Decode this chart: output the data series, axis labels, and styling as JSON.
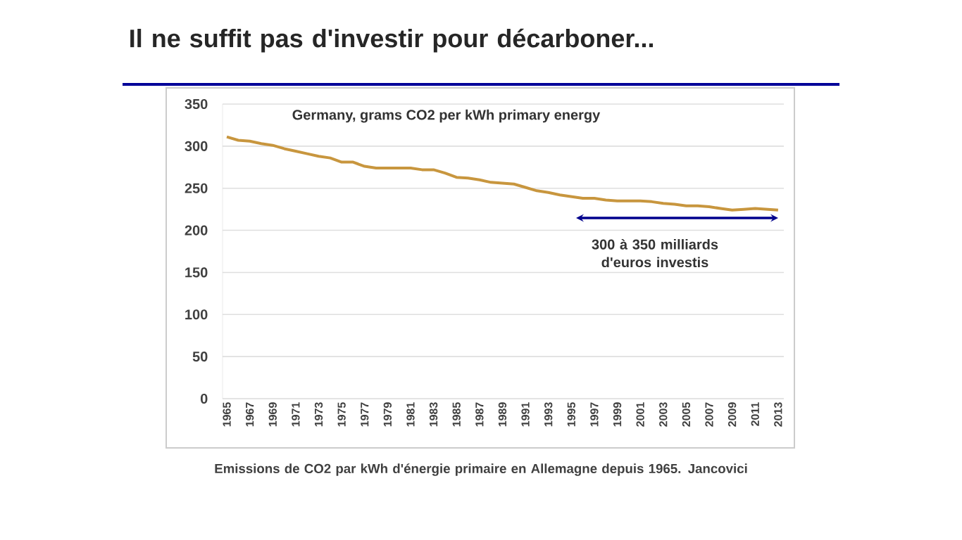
{
  "chart_data": {
    "type": "line",
    "title": "Il ne suffit pas d'investir pour décarboner...",
    "subtitle": "Germany, grams CO2 per kWh primary energy",
    "categories": [
      "1965",
      null,
      "1967",
      null,
      "1969",
      null,
      "1971",
      null,
      "1973",
      null,
      "1975",
      null,
      "1977",
      null,
      "1979",
      null,
      "1981",
      null,
      "1983",
      null,
      "1985",
      null,
      "1987",
      null,
      "1989",
      null,
      "1991",
      null,
      "1993",
      null,
      "1995",
      null,
      "1997",
      null,
      "1999",
      null,
      "2001",
      null,
      "2003",
      null,
      "2005",
      null,
      "2007",
      null,
      "2009",
      null,
      "2011",
      null,
      "2013"
    ],
    "values": [
      311,
      307,
      306,
      303,
      301,
      297,
      294,
      291,
      288,
      286,
      281,
      281,
      276,
      274,
      274,
      274,
      274,
      272,
      272,
      268,
      263,
      262,
      260,
      257,
      256,
      255,
      251,
      247,
      245,
      242,
      240,
      238,
      238,
      236,
      235,
      235,
      235,
      234,
      232,
      231,
      229,
      229,
      228,
      226,
      224,
      225,
      226,
      225,
      224
    ],
    "color": "#c8963e",
    "ylim": [
      0,
      350
    ],
    "yticks": [
      0,
      50,
      100,
      150,
      200,
      250,
      300,
      350
    ],
    "grid": "y",
    "marker": "none",
    "line_style": "solid",
    "annotations": [
      "300 à 350  milliards d'euros investis",
      "Emissions de CO2 par kWh d'énergie primaire en Allemagne depuis 1965. Jancovici"
    ]
  }
}
